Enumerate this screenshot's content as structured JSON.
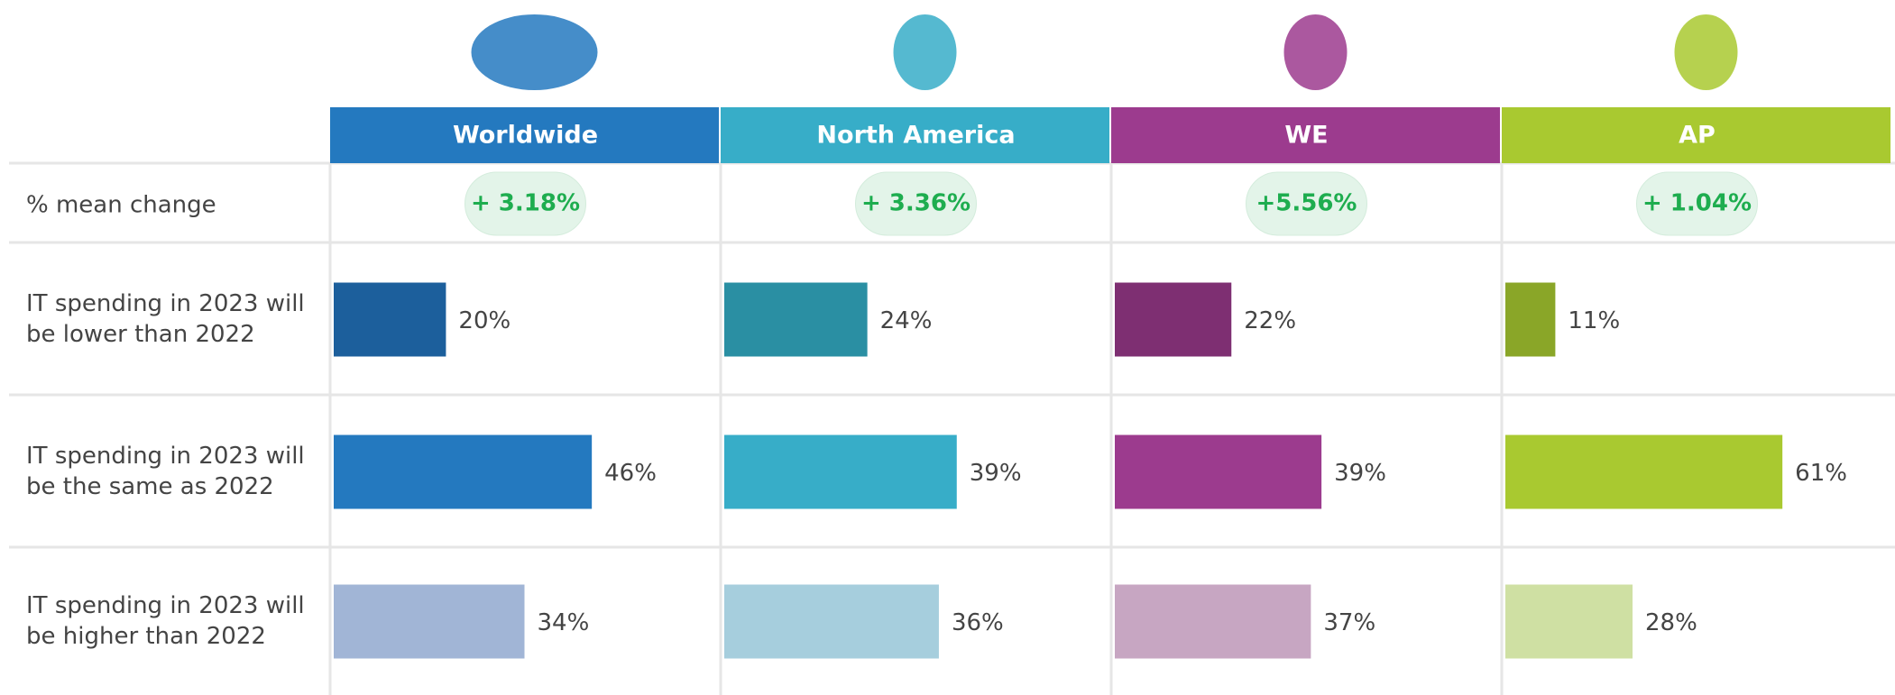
{
  "mean_change_label": "% mean change",
  "rows": [
    [
      "IT spending in 2023 will",
      "be lower than 2022"
    ],
    [
      "IT spending in 2023 will",
      "be the same as 2022"
    ],
    [
      "IT spending in 2023 will",
      "be higher than 2022"
    ]
  ],
  "chart_data": [
    {
      "type": "bar",
      "title": "Worldwide",
      "mean_change": "+ 3.18%",
      "header_color": "#2479bf",
      "values": [
        20,
        46,
        34
      ],
      "value_labels": [
        "20%",
        "46%",
        "34%"
      ],
      "colors": [
        "#1c5f9c",
        "#2479bf",
        "#a1b5d6"
      ],
      "xlim": [
        0,
        68
      ]
    },
    {
      "type": "bar",
      "title": "North America",
      "mean_change": "+ 3.36%",
      "header_color": "#37adc8",
      "values": [
        24,
        39,
        36
      ],
      "value_labels": [
        "24%",
        "39%",
        "36%"
      ],
      "colors": [
        "#2a8fa3",
        "#37adc8",
        "#a6cedd"
      ],
      "xlim": [
        0,
        64
      ]
    },
    {
      "type": "bar",
      "title": "WE",
      "mean_change": "+5.56%",
      "header_color": "#9c3b8e",
      "values": [
        22,
        39,
        37
      ],
      "value_labels": [
        "22%",
        "39%",
        "37%"
      ],
      "colors": [
        "#7e2f72",
        "#9c3b8e",
        "#c7a6c2"
      ],
      "xlim": [
        0,
        72
      ]
    },
    {
      "type": "bar",
      "title": "AP",
      "mean_change": "+ 1.04%",
      "header_color": "#a9c930",
      "values": [
        11,
        61,
        28
      ],
      "value_labels": [
        "11%",
        "61%",
        "28%"
      ],
      "colors": [
        "#8aa628",
        "#a9c930",
        "#cfe0a3"
      ],
      "xlim": [
        0,
        84
      ]
    }
  ]
}
